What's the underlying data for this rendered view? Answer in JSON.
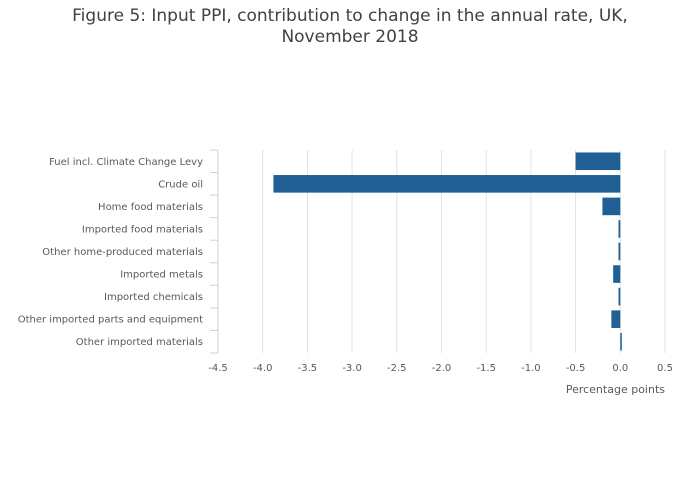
{
  "chart_data": {
    "type": "bar",
    "orientation": "horizontal",
    "title_lines": [
      "Figure 5: Input PPI, contribution to change in the annual rate, UK,",
      "November 2018"
    ],
    "categories": [
      "Fuel incl. Climate Change Levy",
      "Crude oil",
      "Home food materials",
      "Imported food materials",
      "Other home-produced materials",
      "Imported metals",
      "Imported chemicals",
      "Other imported parts and equipment",
      "Other imported materials"
    ],
    "values": [
      -0.5,
      -3.88,
      -0.2,
      -0.02,
      -0.02,
      -0.08,
      -0.02,
      -0.1,
      0.01
    ],
    "xlabel": "Percentage points",
    "ylabel": "",
    "xlim": [
      -4.5,
      0.5
    ],
    "xticks": [
      -4.5,
      -4.0,
      -3.5,
      -3.0,
      -2.5,
      -2.0,
      -1.5,
      -1.0,
      -0.5,
      0.0,
      0.5
    ],
    "xtick_labels": [
      "-4.5",
      "-4.0",
      "-3.5",
      "-3.0",
      "-2.5",
      "-2.0",
      "-1.5",
      "-1.0",
      "-0.5",
      "0.0",
      "0.5"
    ],
    "grid": true,
    "bar_color": "#206095"
  }
}
